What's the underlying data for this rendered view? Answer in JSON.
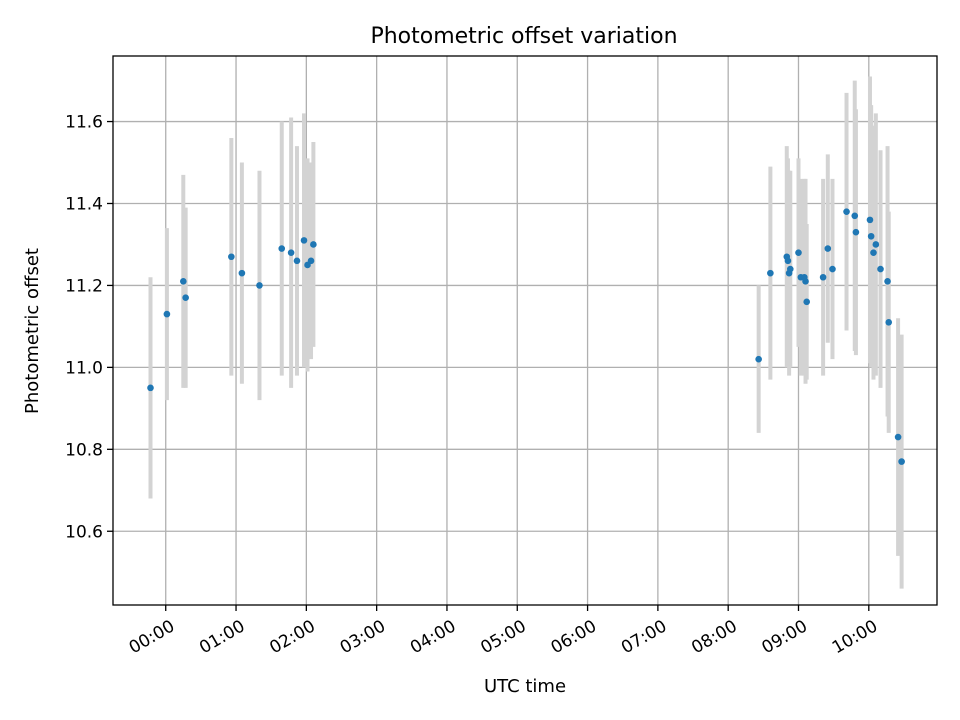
{
  "chart_data": {
    "type": "scatter",
    "title": "Photometric offset variation",
    "xlabel": "UTC time",
    "ylabel": "Photometric offset",
    "x_tick_labels": [
      "00:00",
      "01:00",
      "02:00",
      "03:00",
      "04:00",
      "05:00",
      "06:00",
      "07:00",
      "08:00",
      "09:00",
      "10:00"
    ],
    "x_ticks_hours": [
      0,
      1,
      2,
      3,
      4,
      5,
      6,
      7,
      8,
      9,
      10
    ],
    "y_tick_labels": [
      "10.6",
      "10.8",
      "11.0",
      "11.2",
      "11.4",
      "11.6"
    ],
    "y_ticks": [
      10.6,
      10.8,
      11.0,
      11.2,
      11.4,
      11.6
    ],
    "xlim_hours": [
      -0.75,
      10.97
    ],
    "ylim": [
      10.42,
      11.76
    ],
    "grid": true,
    "point_color": "#1f77b4",
    "errorbar_color": "#d3d3d3",
    "series": [
      {
        "points": [
          {
            "t": "23:47",
            "y": 10.95,
            "err": 0.27
          },
          {
            "t": "00:01",
            "y": 11.13,
            "err": 0.21
          },
          {
            "t": "00:15",
            "y": 11.21,
            "err": 0.26
          },
          {
            "t": "00:17",
            "y": 11.17,
            "err": 0.22
          },
          {
            "t": "00:56",
            "y": 11.27,
            "err": 0.29
          },
          {
            "t": "01:05",
            "y": 11.23,
            "err": 0.27
          },
          {
            "t": "01:20",
            "y": 11.2,
            "err": 0.28
          },
          {
            "t": "01:39",
            "y": 11.29,
            "err": 0.31
          },
          {
            "t": "01:47",
            "y": 11.28,
            "err": 0.33
          },
          {
            "t": "01:52",
            "y": 11.26,
            "err": 0.28
          },
          {
            "t": "01:58",
            "y": 11.31,
            "err": 0.31
          },
          {
            "t": "02:01",
            "y": 11.25,
            "err": 0.26
          },
          {
            "t": "02:04",
            "y": 11.26,
            "err": 0.24
          },
          {
            "t": "02:06",
            "y": 11.3,
            "err": 0.25
          },
          {
            "t": "08:26",
            "y": 11.02,
            "err": 0.18
          },
          {
            "t": "08:36",
            "y": 11.23,
            "err": 0.26
          },
          {
            "t": "08:50",
            "y": 11.27,
            "err": 0.27
          },
          {
            "t": "08:51",
            "y": 11.26,
            "err": 0.25
          },
          {
            "t": "08:52",
            "y": 11.23,
            "err": 0.25
          },
          {
            "t": "08:53",
            "y": 11.24,
            "err": 0.24
          },
          {
            "t": "09:00",
            "y": 11.28,
            "err": 0.23
          },
          {
            "t": "09:02",
            "y": 11.22,
            "err": 0.24
          },
          {
            "t": "09:05",
            "y": 11.22,
            "err": 0.24
          },
          {
            "t": "09:06",
            "y": 11.21,
            "err": 0.25
          },
          {
            "t": "09:07",
            "y": 11.16,
            "err": 0.19
          },
          {
            "t": "09:21",
            "y": 11.22,
            "err": 0.24
          },
          {
            "t": "09:25",
            "y": 11.29,
            "err": 0.23
          },
          {
            "t": "09:29",
            "y": 11.24,
            "err": 0.22
          },
          {
            "t": "09:41",
            "y": 11.38,
            "err": 0.29
          },
          {
            "t": "09:48",
            "y": 11.37,
            "err": 0.33
          },
          {
            "t": "09:49",
            "y": 11.33,
            "err": 0.3
          },
          {
            "t": "10:01",
            "y": 11.36,
            "err": 0.35
          },
          {
            "t": "10:02",
            "y": 11.32,
            "err": 0.32
          },
          {
            "t": "10:04",
            "y": 11.28,
            "err": 0.31
          },
          {
            "t": "10:06",
            "y": 11.3,
            "err": 0.32
          },
          {
            "t": "10:10",
            "y": 11.24,
            "err": 0.29
          },
          {
            "t": "10:16",
            "y": 11.21,
            "err": 0.33
          },
          {
            "t": "10:17",
            "y": 11.11,
            "err": 0.27
          },
          {
            "t": "10:25",
            "y": 10.83,
            "err": 0.29
          },
          {
            "t": "10:28",
            "y": 10.77,
            "err": 0.31
          }
        ]
      }
    ]
  }
}
